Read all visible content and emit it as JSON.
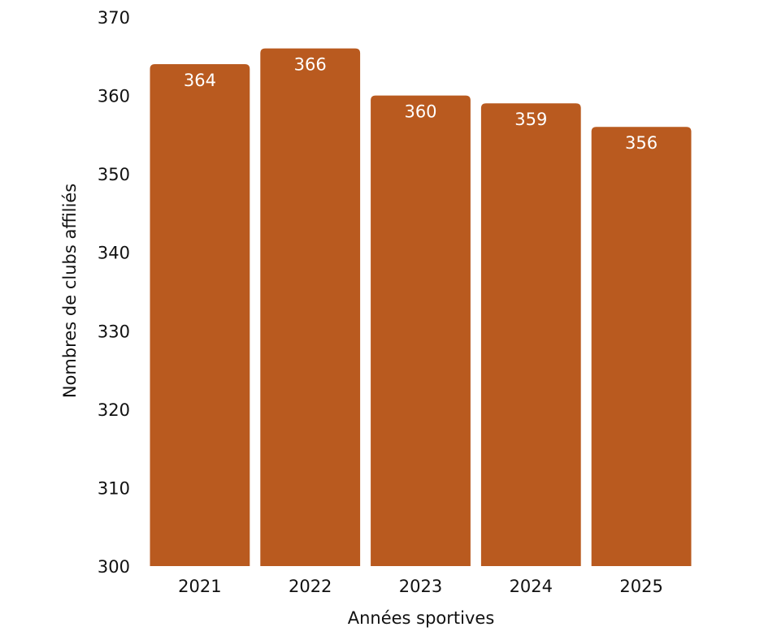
{
  "chart_data": {
    "type": "bar",
    "categories": [
      "2021",
      "2022",
      "2023",
      "2024",
      "2025"
    ],
    "values": [
      364,
      366,
      360,
      359,
      356
    ],
    "title": "",
    "xlabel": "Années sportives",
    "ylabel": "Nombres de clubs affiliés",
    "ylim": [
      300,
      370
    ],
    "yticks": [
      300,
      310,
      320,
      330,
      340,
      350,
      360,
      370
    ],
    "grid": false,
    "data_labels": true,
    "bar_color": "#B95A1F"
  }
}
